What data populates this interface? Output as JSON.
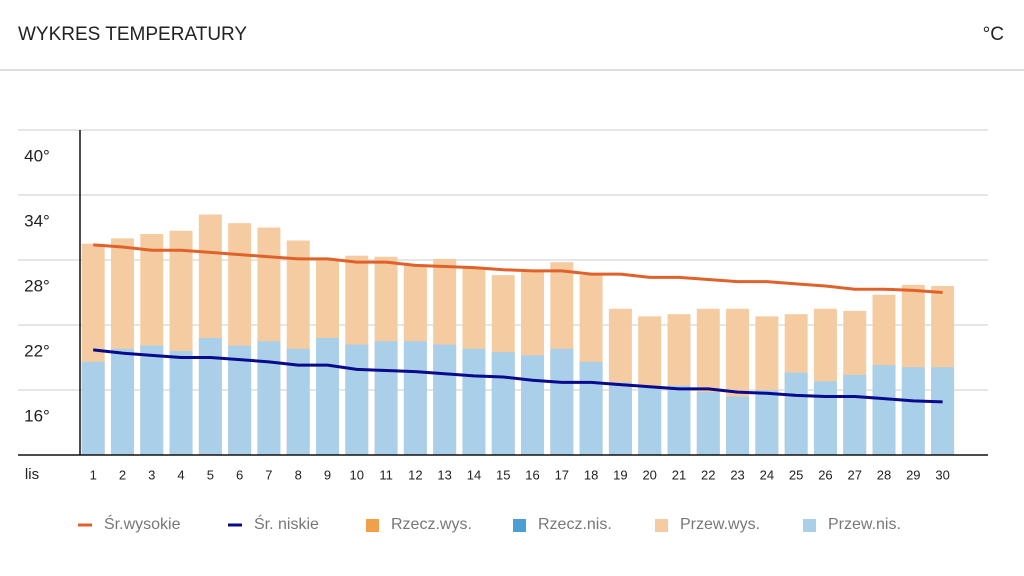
{
  "chart_data": {
    "type": "bar",
    "title": "WYKRES TEMPERATURY",
    "unit": "°C",
    "x_label": "lis",
    "categories": [
      "1",
      "2",
      "3",
      "4",
      "5",
      "6",
      "7",
      "8",
      "9",
      "10",
      "11",
      "12",
      "13",
      "14",
      "15",
      "16",
      "17",
      "18",
      "19",
      "20",
      "21",
      "22",
      "23",
      "24",
      "25",
      "26",
      "27",
      "28",
      "29",
      "30"
    ],
    "ylim": [
      10,
      40
    ],
    "yticks": [
      {
        "value": 16,
        "label": "16°"
      },
      {
        "value": 22,
        "label": "22°"
      },
      {
        "value": 28,
        "label": "28°"
      },
      {
        "value": 34,
        "label": "34°"
      },
      {
        "value": 40,
        "label": "40°"
      }
    ],
    "grid": true,
    "series": [
      {
        "name": "Śr.wysokie",
        "type": "line",
        "color": "#e0622a",
        "values": [
          29.4,
          29.2,
          28.9,
          28.9,
          28.7,
          28.5,
          28.3,
          28.1,
          28.1,
          27.8,
          27.8,
          27.5,
          27.4,
          27.3,
          27.1,
          27.0,
          27.0,
          26.7,
          26.7,
          26.4,
          26.4,
          26.2,
          26.0,
          26.0,
          25.8,
          25.6,
          25.3,
          25.3,
          25.2,
          25.0
        ]
      },
      {
        "name": "Śr. niskie",
        "type": "line",
        "color": "#0a0a8c",
        "values": [
          19.7,
          19.4,
          19.2,
          19.0,
          19.0,
          18.8,
          18.6,
          18.3,
          18.3,
          17.9,
          17.8,
          17.7,
          17.5,
          17.3,
          17.2,
          16.9,
          16.7,
          16.7,
          16.5,
          16.3,
          16.1,
          16.1,
          15.8,
          15.7,
          15.5,
          15.4,
          15.4,
          15.2,
          15.0,
          14.9
        ]
      },
      {
        "name": "Rzecz.wys.",
        "type": "bar",
        "color": "#f0a04b",
        "values": [
          null,
          null,
          null,
          null,
          null,
          null,
          null,
          null,
          null,
          null,
          null,
          null,
          null,
          null,
          null,
          null,
          null,
          null,
          null,
          null,
          null,
          null,
          null,
          null,
          null,
          null,
          null,
          null,
          null,
          null
        ]
      },
      {
        "name": "Rzecz.nis.",
        "type": "bar",
        "color": "#4a9fd5",
        "values": [
          null,
          null,
          null,
          null,
          null,
          null,
          null,
          null,
          null,
          null,
          null,
          null,
          null,
          null,
          null,
          null,
          null,
          null,
          null,
          null,
          null,
          null,
          null,
          null,
          null,
          null,
          null,
          null,
          null,
          null
        ]
      },
      {
        "name": "Przew.wys.",
        "type": "bar",
        "color": "#f5cca2",
        "values": [
          29.5,
          30.0,
          30.4,
          30.7,
          32.2,
          31.4,
          31.0,
          29.8,
          28.1,
          28.4,
          28.3,
          27.6,
          28.1,
          27.3,
          26.6,
          26.9,
          27.8,
          26.6,
          23.5,
          22.8,
          23.0,
          23.5,
          23.5,
          22.8,
          23.0,
          23.5,
          23.3,
          24.8,
          25.7,
          25.6
        ]
      },
      {
        "name": "Przew.nis.",
        "type": "bar",
        "color": "#aacfe9",
        "values": [
          18.6,
          19.8,
          20.1,
          19.6,
          20.8,
          20.1,
          20.5,
          19.8,
          20.8,
          20.2,
          20.5,
          20.5,
          20.2,
          19.8,
          19.5,
          19.2,
          19.8,
          18.6,
          16.7,
          16.4,
          16.4,
          15.8,
          15.4,
          16.0,
          17.6,
          16.8,
          17.4,
          18.3,
          18.1,
          18.1
        ]
      }
    ]
  }
}
